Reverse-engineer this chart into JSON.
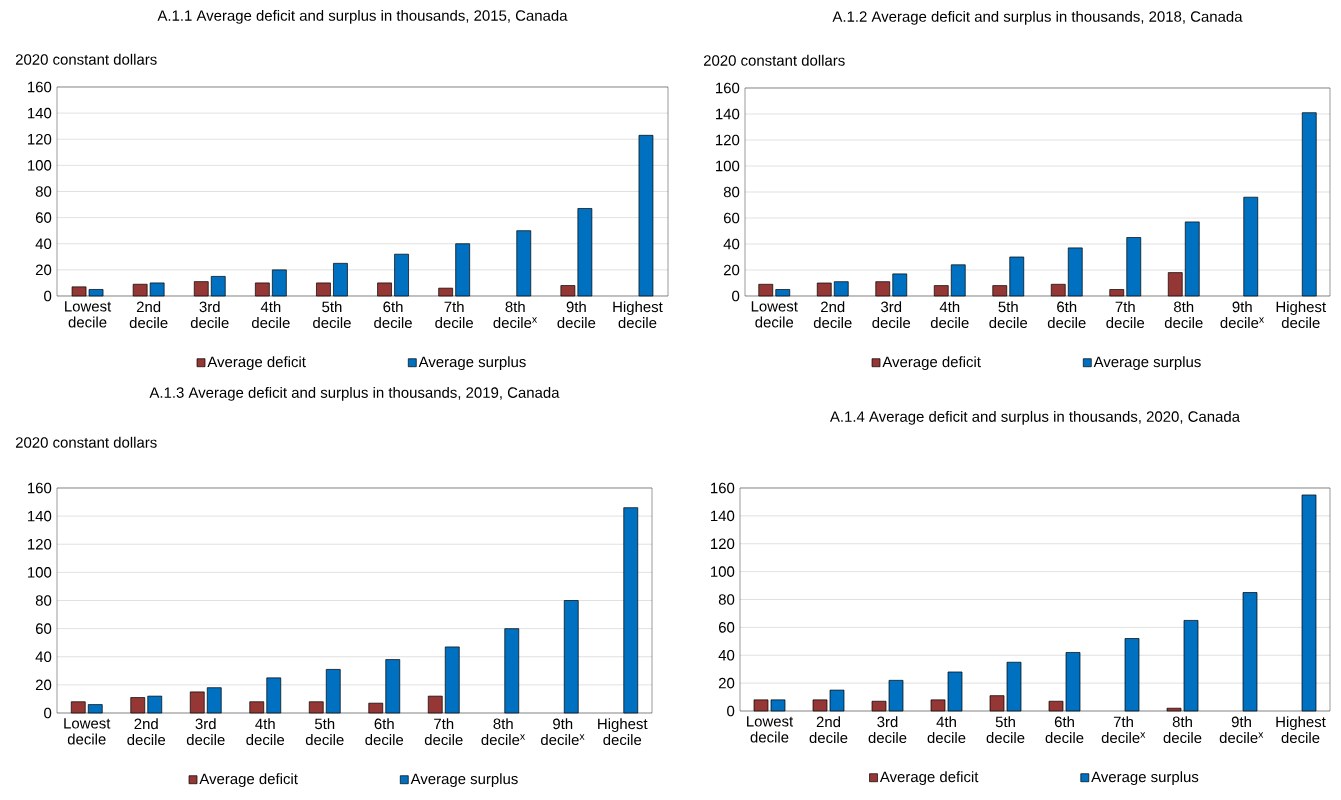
{
  "chart_data": [
    {
      "type": "bar",
      "title": "A.1.1 Average deficit and surplus in thousands, 2015, Canada",
      "ylabel": "2020 constant dollars",
      "categories": [
        "Lowest decile",
        "2nd decile",
        "3rd decile",
        "4th decile",
        "5th decile",
        "6th decile",
        "7th decile",
        "8th decile$^{x}$",
        "9th decile",
        "Highest decile"
      ],
      "series": [
        {
          "name": "Average deficit",
          "color": "#953735",
          "values": [
            7,
            9,
            11,
            10,
            10,
            10,
            6,
            null,
            8,
            null
          ]
        },
        {
          "name": "Average surplus",
          "color": "#0070c0",
          "values": [
            5,
            10,
            15,
            20,
            25,
            32,
            40,
            50,
            67,
            123
          ]
        }
      ],
      "ylim": [
        0,
        160
      ],
      "yticks": [
        0,
        20,
        40,
        60,
        80,
        100,
        120,
        140,
        160
      ],
      "grid": "y",
      "legend": "bottom"
    },
    {
      "type": "bar",
      "title": "A.1.2 Average deficit and surplus in thousands, 2018, Canada",
      "ylabel": "2020 constant dollars",
      "categories": [
        "Lowest decile",
        "2nd decile",
        "3rd decile",
        "4th decile",
        "5th decile",
        "6th decile",
        "7th decile",
        "8th decile",
        "9th decile$^{x}$",
        "Highest decile"
      ],
      "series": [
        {
          "name": "Average deficit",
          "color": "#953735",
          "values": [
            9,
            10,
            11,
            8,
            8,
            9,
            5,
            18,
            null,
            null
          ]
        },
        {
          "name": "Average surplus",
          "color": "#0070c0",
          "values": [
            5,
            11,
            17,
            24,
            30,
            37,
            45,
            57,
            76,
            141
          ]
        }
      ],
      "ylim": [
        0,
        160
      ],
      "yticks": [
        0,
        20,
        40,
        60,
        80,
        100,
        120,
        140,
        160
      ],
      "grid": "y",
      "legend": "bottom"
    },
    {
      "type": "bar",
      "title": "A.1.3 Average deficit and surplus in thousands, 2019, Canada",
      "ylabel": "2020 constant dollars",
      "categories": [
        "Lowest decile",
        "2nd decile",
        "3rd decile",
        "4th decile",
        "5th decile",
        "6th decile",
        "7th decile",
        "8th decile$^{x}$",
        "9th decile$^{x}$",
        "Highest decile"
      ],
      "series": [
        {
          "name": "Average deficit",
          "color": "#953735",
          "values": [
            8,
            11,
            15,
            8,
            8,
            7,
            12,
            null,
            null,
            null
          ]
        },
        {
          "name": "Average surplus",
          "color": "#0070c0",
          "values": [
            6,
            12,
            18,
            25,
            31,
            38,
            47,
            60,
            80,
            146
          ]
        }
      ],
      "ylim": [
        0,
        160
      ],
      "yticks": [
        0,
        20,
        40,
        60,
        80,
        100,
        120,
        140,
        160
      ],
      "grid": "y",
      "legend": "bottom"
    },
    {
      "type": "bar",
      "title": "A.1.4 Average deficit and surplus in thousands, 2020, Canada",
      "categories": [
        "Lowest decile",
        "2nd decile",
        "3rd decile",
        "4th decile",
        "5th decile",
        "6th decile",
        "7th decile$^{x}$",
        "8th decile",
        "9th decile$^{x}$",
        "Highest decile"
      ],
      "series": [
        {
          "name": "Average deficit",
          "color": "#953735",
          "values": [
            8,
            8,
            7,
            8,
            11,
            7,
            null,
            2,
            null,
            null
          ]
        },
        {
          "name": "Average surplus",
          "color": "#0070c0",
          "values": [
            8,
            15,
            22,
            28,
            35,
            42,
            52,
            65,
            85,
            155
          ]
        }
      ],
      "ylim": [
        0,
        160
      ],
      "yticks": [
        0,
        20,
        40,
        60,
        80,
        100,
        120,
        140,
        160
      ],
      "grid": "y",
      "legend": "bottom"
    }
  ]
}
